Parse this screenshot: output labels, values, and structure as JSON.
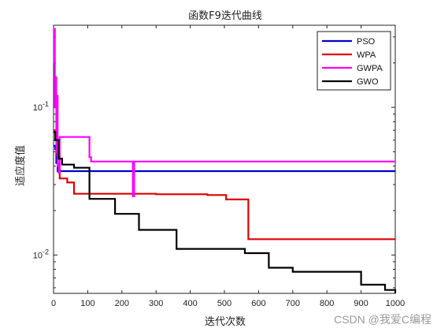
{
  "chart_data": {
    "type": "line",
    "title": "函数F9迭代曲线",
    "xlabel": "迭代次数",
    "ylabel": "适应度值",
    "xlim": [
      0,
      1000
    ],
    "ylim": [
      0.0055,
      0.36
    ],
    "yscale": "log",
    "xticks": [
      0,
      100,
      200,
      300,
      400,
      500,
      600,
      700,
      800,
      900,
      1000
    ],
    "xtick_labels": [
      "0",
      "100",
      "200",
      "300",
      "400",
      "500",
      "600",
      "700",
      "800",
      "900",
      "1000"
    ],
    "yticks": [
      0.01,
      0.1
    ],
    "ytick_labels": [
      "10-2",
      "10-1"
    ],
    "grid": false,
    "legend_position": "top-right",
    "series": [
      {
        "name": "PSO",
        "color": "#0000cc",
        "x": [
          0,
          5,
          8,
          12,
          1000
        ],
        "y": [
          0.055,
          0.052,
          0.042,
          0.037,
          0.037
        ]
      },
      {
        "name": "WPA",
        "color": "#dd0000",
        "x": [
          0,
          5,
          10,
          18,
          40,
          60,
          100,
          300,
          450,
          505,
          560,
          570,
          1000
        ],
        "y": [
          0.07,
          0.066,
          0.048,
          0.033,
          0.031,
          0.026,
          0.026,
          0.0258,
          0.0255,
          0.0238,
          0.0238,
          0.0128,
          0.0128
        ]
      },
      {
        "name": "GWPA",
        "color": "#ff00ff",
        "x": [
          0,
          2,
          4,
          6,
          8,
          10,
          12,
          15,
          18,
          100,
          105,
          110,
          230,
          232,
          236,
          240,
          1000
        ],
        "y": [
          0.2,
          0.34,
          0.1,
          0.16,
          0.05,
          0.12,
          0.04,
          0.036,
          0.063,
          0.063,
          0.046,
          0.043,
          0.043,
          0.025,
          0.043,
          0.043,
          0.043
        ]
      },
      {
        "name": "GWO",
        "color": "#000000",
        "x": [
          0,
          5,
          15,
          25,
          60,
          105,
          110,
          180,
          250,
          360,
          560,
          630,
          700,
          900,
          970,
          1000
        ],
        "y": [
          0.068,
          0.06,
          0.045,
          0.041,
          0.039,
          0.024,
          0.024,
          0.019,
          0.0148,
          0.011,
          0.0103,
          0.0082,
          0.0077,
          0.0063,
          0.0058,
          0.0055
        ]
      }
    ]
  },
  "watermark": "CSDN @我爱C编程"
}
